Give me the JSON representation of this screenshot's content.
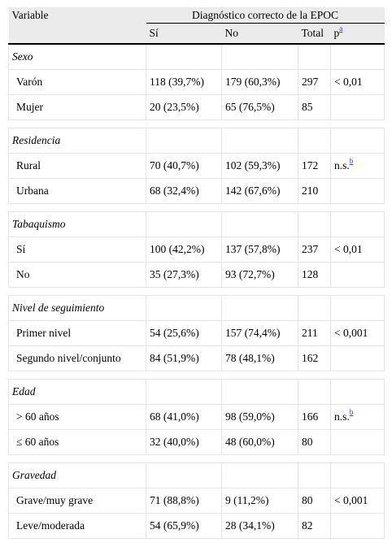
{
  "header": {
    "variable": "Variable",
    "group_label": "Diagnóstico correcto de la EPOC",
    "col_si": "Sí",
    "col_no": "No",
    "col_total": "Total",
    "col_p": "p",
    "col_p_note": "a"
  },
  "groups": [
    {
      "label": "Sexo",
      "rows": [
        {
          "label": "Varón",
          "si": "118 (39,7%)",
          "no": "179 (60,3%)",
          "total": "297",
          "p": "< 0,01",
          "note": ""
        },
        {
          "label": "Mujer",
          "si": "20 (23,5%)",
          "no": "65 (76,5%)",
          "total": "85",
          "p": "",
          "note": ""
        }
      ]
    },
    {
      "label": "Residencia",
      "rows": [
        {
          "label": "Rural",
          "si": "70 (40,7%)",
          "no": "102 (59,3%)",
          "total": "172",
          "p": "n.s.",
          "note": "b"
        },
        {
          "label": "Urbana",
          "si": "68 (32,4%)",
          "no": "142 (67,6%)",
          "total": "210",
          "p": "",
          "note": ""
        }
      ]
    },
    {
      "label": "Tabaquismo",
      "rows": [
        {
          "label": "Sí",
          "si": "100 (42,2%)",
          "no": "137 (57,8%)",
          "total": "237",
          "p": "< 0,01",
          "note": ""
        },
        {
          "label": "No",
          "si": "35 (27,3%)",
          "no": "93 (72,7%)",
          "total": "128",
          "p": "",
          "note": ""
        }
      ]
    },
    {
      "label": "Nivel de seguimiento",
      "rows": [
        {
          "label": "Primer nivel",
          "si": "54 (25,6%)",
          "no": "157 (74,4%)",
          "total": "211",
          "p": "< 0,001",
          "note": ""
        },
        {
          "label": "Segundo nivel/conjunto",
          "si": "84 (51,9%)",
          "no": "78 (48,1%)",
          "total": "162",
          "p": "",
          "note": ""
        }
      ]
    },
    {
      "label": "Edad",
      "rows": [
        {
          "label": "> 60 años",
          "si": "68 (41,0%)",
          "no": "98 (59,0%)",
          "total": "166",
          "p": "n.s.",
          "note": "b"
        },
        {
          "label": "≤ 60 años",
          "si": "32 (40,0%)",
          "no": "48 (60,0%)",
          "total": "80",
          "p": "",
          "note": ""
        }
      ]
    },
    {
      "label": "Gravedad",
      "rows": [
        {
          "label": "Grave/muy grave",
          "si": "71 (88,8%)",
          "no": "9 (11,2%)",
          "total": "80",
          "p": "< 0,001",
          "note": ""
        },
        {
          "label": "Leve/moderada",
          "si": "54 (65,9%)",
          "no": "28 (34,1%)",
          "total": "82",
          "p": "",
          "note": ""
        }
      ]
    }
  ]
}
